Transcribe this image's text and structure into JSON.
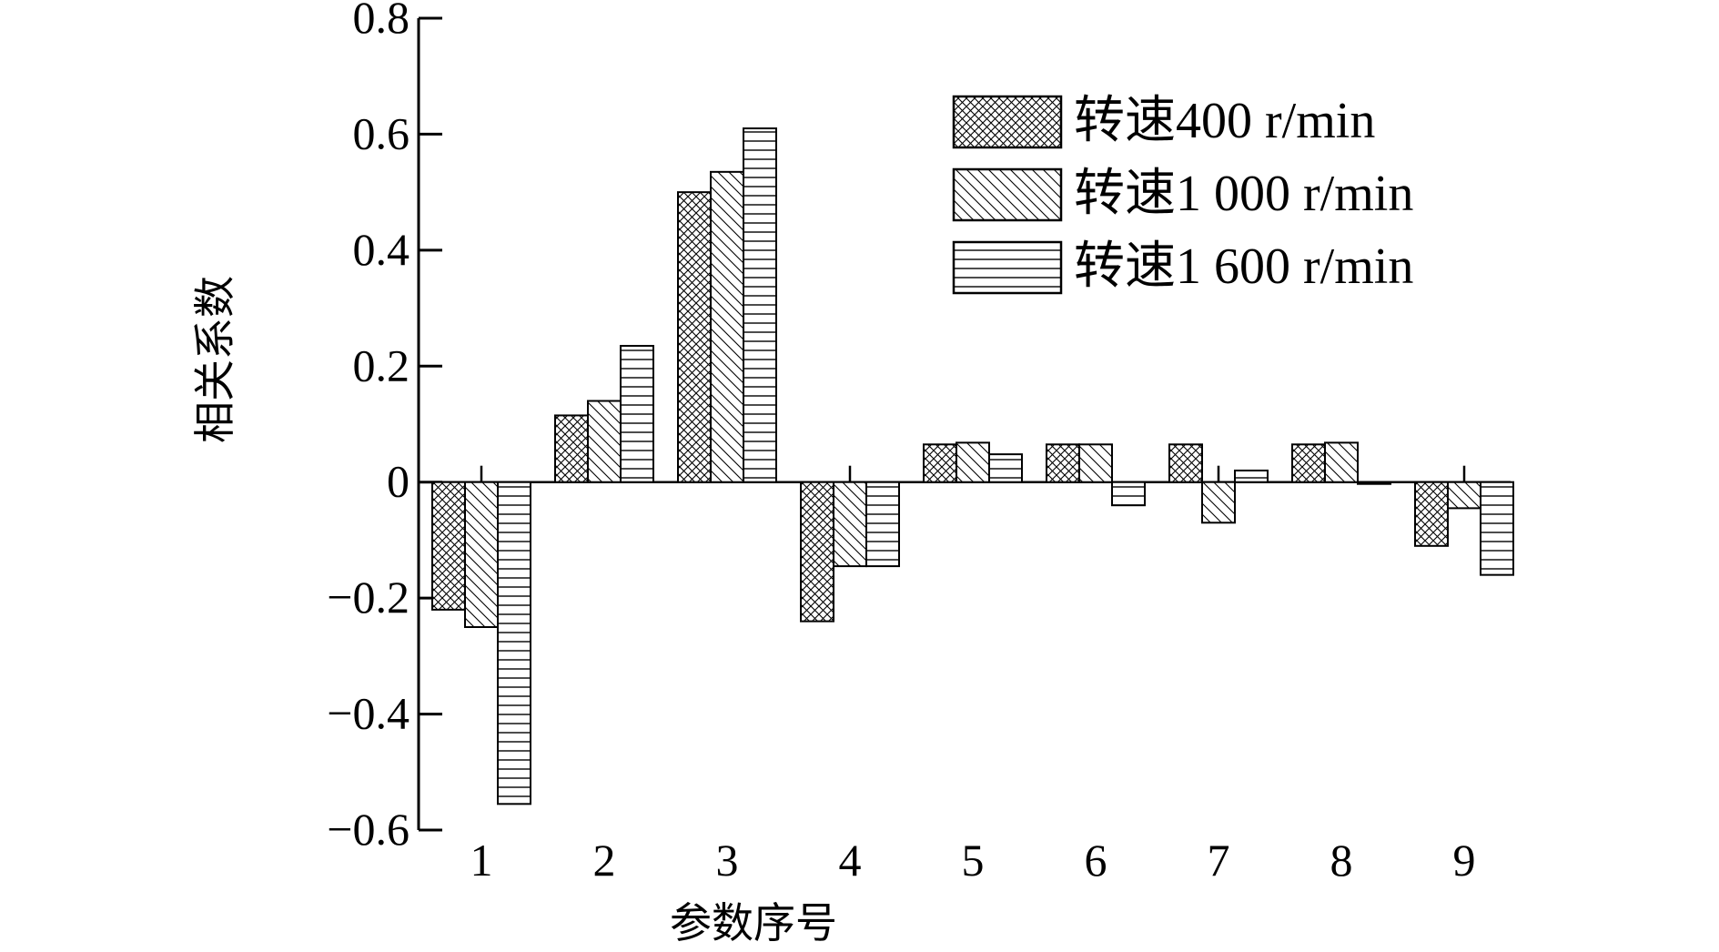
{
  "chart_data": {
    "type": "bar",
    "title": "",
    "xlabel": "参数序号",
    "ylabel": "相关系数",
    "categories": [
      "1",
      "2",
      "3",
      "4",
      "5",
      "6",
      "7",
      "8",
      "9"
    ],
    "ylim": [
      -0.6,
      0.8
    ],
    "yticks": [
      -0.6,
      -0.4,
      -0.2,
      0,
      0.2,
      0.4,
      0.6,
      0.8
    ],
    "ytick_labels": [
      "−0.6",
      "−0.4",
      "−0.2",
      "0",
      "0.2",
      "0.4",
      "0.6",
      "0.8"
    ],
    "grid": false,
    "legend_position": "top-right",
    "series": [
      {
        "name": "转速400 r/min",
        "pattern": "crosshatch",
        "values": [
          -0.22,
          0.115,
          0.5,
          -0.24,
          0.065,
          0.065,
          0.065,
          0.065,
          -0.11
        ]
      },
      {
        "name": "转速1 000 r/min",
        "pattern": "diagonal",
        "values": [
          -0.25,
          0.14,
          0.535,
          -0.145,
          0.068,
          0.065,
          -0.07,
          0.068,
          -0.045
        ]
      },
      {
        "name": "转速1 600 r/min",
        "pattern": "horizontal",
        "values": [
          -0.555,
          0.235,
          0.61,
          -0.145,
          0.048,
          -0.04,
          0.02,
          -0.003,
          -0.16
        ]
      }
    ]
  }
}
